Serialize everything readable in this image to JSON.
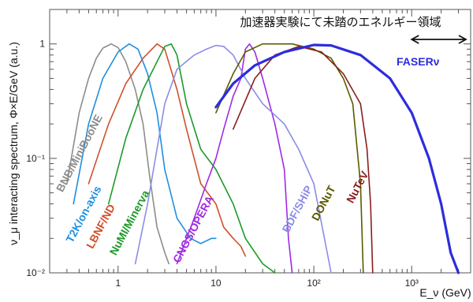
{
  "chart_data": {
    "type": "line",
    "ylabel": "ν_μ interacting spectrum, Φ×E/GeV (a.u.)",
    "xlabel": "E_ν (GeV)",
    "x_scale": "log",
    "y_scale": "log",
    "xlim": [
      0.2,
      4000
    ],
    "ylim": [
      0.01,
      2
    ],
    "x_ticks": [
      {
        "value": 1,
        "label": "1"
      },
      {
        "value": 10,
        "label": "10"
      },
      {
        "value": 100,
        "label": "10²"
      },
      {
        "value": 1000,
        "label": "10³"
      }
    ],
    "y_ticks": [
      {
        "value": 0.01,
        "label": "10⁻²"
      },
      {
        "value": 0.1,
        "label": "10⁻¹"
      },
      {
        "value": 1,
        "label": "1"
      }
    ],
    "annotation": "加速器実験にて未踏のエネルギー領域",
    "annotation_range": [
      1000,
      4000
    ],
    "series": [
      {
        "name": "BNB/MiniBooNE",
        "color": "#8c8c8c",
        "width": 1.6,
        "label_at": [
          0.27,
          0.05
        ],
        "label_angle": -62,
        "points": [
          [
            0.3,
            0.06
          ],
          [
            0.4,
            0.25
          ],
          [
            0.5,
            0.5
          ],
          [
            0.6,
            0.75
          ],
          [
            0.7,
            0.92
          ],
          [
            0.85,
            1.0
          ],
          [
            1.0,
            0.93
          ],
          [
            1.2,
            0.7
          ],
          [
            1.5,
            0.4
          ],
          [
            1.8,
            0.2
          ],
          [
            2.1,
            0.07
          ],
          [
            2.5,
            0.025
          ],
          [
            3.0,
            0.015
          ],
          [
            3.3,
            0.012
          ]
        ]
      },
      {
        "name": "T2K/on-axis",
        "color": "#1e8fe0",
        "width": 1.6,
        "label_at": [
          0.34,
          0.018
        ],
        "label_angle": -62,
        "points": [
          [
            0.35,
            0.04
          ],
          [
            0.5,
            0.2
          ],
          [
            0.7,
            0.5
          ],
          [
            1.0,
            0.85
          ],
          [
            1.3,
            1.0
          ],
          [
            1.6,
            0.9
          ],
          [
            2.0,
            0.55
          ],
          [
            2.5,
            0.25
          ],
          [
            3.0,
            0.08
          ],
          [
            4.0,
            0.03
          ],
          [
            5.5,
            0.02
          ],
          [
            7.0,
            0.018
          ],
          [
            9.0,
            0.02
          ],
          [
            10.0,
            0.02
          ]
        ]
      },
      {
        "name": "LBNF/ND",
        "color": "#d0502a",
        "width": 1.6,
        "label_at": [
          0.55,
          0.016
        ],
        "label_angle": -62,
        "points": [
          [
            0.5,
            0.06
          ],
          [
            0.8,
            0.2
          ],
          [
            1.2,
            0.45
          ],
          [
            1.8,
            0.75
          ],
          [
            2.5,
            1.0
          ],
          [
            3.0,
            0.9
          ],
          [
            4.0,
            0.4
          ],
          [
            5.0,
            0.18
          ],
          [
            7.0,
            0.06
          ],
          [
            10.0,
            0.04
          ],
          [
            12.0,
            0.025
          ],
          [
            15.0,
            0.02
          ],
          [
            18.0,
            0.017
          ],
          [
            20.0,
            0.014
          ]
        ]
      },
      {
        "name": "NuMI/Minerva",
        "color": "#1e9a2a",
        "width": 1.6,
        "label_at": [
          0.95,
          0.014
        ],
        "label_angle": -62,
        "points": [
          [
            0.8,
            0.04
          ],
          [
            1.2,
            0.15
          ],
          [
            1.8,
            0.4
          ],
          [
            2.5,
            0.7
          ],
          [
            3.0,
            0.95
          ],
          [
            3.5,
            1.0
          ],
          [
            4.0,
            0.8
          ],
          [
            5.0,
            0.3
          ],
          [
            7.0,
            0.12
          ],
          [
            10.0,
            0.08
          ],
          [
            15.0,
            0.04
          ],
          [
            20.0,
            0.02
          ],
          [
            30.0,
            0.012
          ],
          [
            40.0,
            0.01
          ]
        ]
      },
      {
        "name": "CNGS/OPERA",
        "color": "#a02be0",
        "width": 1.6,
        "label_at": [
          4.2,
          0.012
        ],
        "label_angle": -62,
        "points": [
          [
            4.0,
            0.012
          ],
          [
            6.0,
            0.03
          ],
          [
            8.0,
            0.06
          ],
          [
            10.0,
            0.1
          ],
          [
            12.0,
            0.18
          ],
          [
            15.0,
            0.35
          ],
          [
            18.0,
            0.5
          ],
          [
            20.0,
            0.9
          ],
          [
            22.0,
            1.0
          ],
          [
            25.0,
            0.85
          ],
          [
            30.0,
            0.5
          ],
          [
            40.0,
            0.2
          ],
          [
            50.0,
            0.08
          ],
          [
            55.0,
            0.02
          ],
          [
            60.0,
            0.01
          ]
        ]
      },
      {
        "name": "BDF/SHiP",
        "color": "#8c8ce6",
        "width": 1.6,
        "label_at": [
          55,
          0.022
        ],
        "label_angle": -62,
        "points": [
          [
            1.5,
            0.012
          ],
          [
            2.0,
            0.04
          ],
          [
            3.0,
            0.3
          ],
          [
            4.0,
            0.6
          ],
          [
            6.0,
            0.8
          ],
          [
            8.0,
            0.9
          ],
          [
            10.0,
            0.97
          ],
          [
            12.0,
            0.95
          ],
          [
            15.0,
            0.8
          ],
          [
            20.0,
            0.5
          ],
          [
            30.0,
            0.3
          ],
          [
            50.0,
            0.2
          ],
          [
            70.0,
            0.12
          ],
          [
            100.0,
            0.06
          ],
          [
            150.0,
            0.01
          ]
        ]
      },
      {
        "name": "DONuT",
        "color": "#5a5a00",
        "width": 1.6,
        "label_at": [
          110,
          0.028
        ],
        "label_angle": -62,
        "points": [
          [
            10.0,
            0.25
          ],
          [
            15.0,
            0.55
          ],
          [
            20.0,
            0.85
          ],
          [
            30.0,
            1.0
          ],
          [
            60.0,
            1.0
          ],
          [
            100.0,
            0.9
          ],
          [
            150.0,
            0.75
          ],
          [
            200.0,
            0.5
          ],
          [
            250.0,
            0.3
          ],
          [
            300.0,
            0.06
          ],
          [
            320.0,
            0.01
          ]
        ]
      },
      {
        "name": "NuTeV",
        "color": "#8a1e1e",
        "width": 1.6,
        "label_at": [
          250,
          0.04
        ],
        "label_angle": -62,
        "points": [
          [
            15.0,
            0.18
          ],
          [
            25.0,
            0.5
          ],
          [
            40.0,
            0.8
          ],
          [
            70.0,
            0.95
          ],
          [
            120.0,
            0.85
          ],
          [
            200.0,
            0.55
          ],
          [
            300.0,
            0.3
          ],
          [
            350.0,
            0.12
          ],
          [
            380.0,
            0.04
          ],
          [
            400.0,
            0.01
          ]
        ]
      },
      {
        "name": "FASERν",
        "color": "#2d2ddc",
        "width": 3.2,
        "label_at": [
          700,
          0.65
        ],
        "label_angle": 0,
        "points": [
          [
            10.0,
            0.28
          ],
          [
            15.0,
            0.45
          ],
          [
            25.0,
            0.65
          ],
          [
            50.0,
            0.85
          ],
          [
            100.0,
            0.98
          ],
          [
            150.0,
            0.97
          ],
          [
            300.0,
            0.8
          ],
          [
            600.0,
            0.5
          ],
          [
            1000.0,
            0.25
          ],
          [
            1500.0,
            0.1
          ],
          [
            2000.0,
            0.04
          ],
          [
            2500.0,
            0.015
          ],
          [
            3000.0,
            0.01
          ]
        ]
      }
    ]
  }
}
